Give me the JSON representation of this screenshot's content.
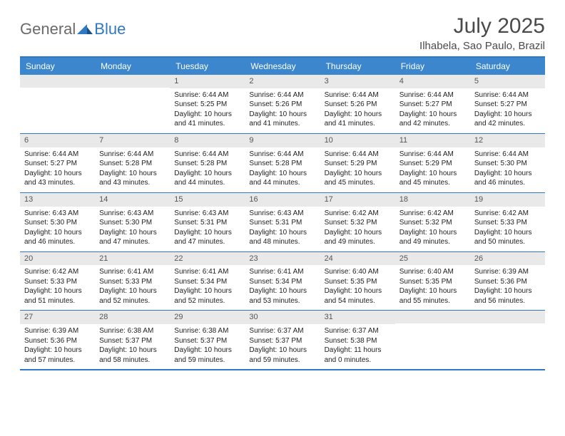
{
  "brand": {
    "word1": "General",
    "word2": "Blue"
  },
  "title": "July 2025",
  "location": "Ilhabela, Sao Paulo, Brazil",
  "colors": {
    "header_bg": "#3b86cc",
    "border": "#2f78c2",
    "daynum_bg": "#e9e9e9",
    "text": "#222222",
    "muted": "#6a6a6a"
  },
  "day_names": [
    "Sunday",
    "Monday",
    "Tuesday",
    "Wednesday",
    "Thursday",
    "Friday",
    "Saturday"
  ],
  "weeks": [
    [
      null,
      null,
      {
        "n": "1",
        "sr": "Sunrise: 6:44 AM",
        "ss": "Sunset: 5:25 PM",
        "dl": "Daylight: 10 hours and 41 minutes."
      },
      {
        "n": "2",
        "sr": "Sunrise: 6:44 AM",
        "ss": "Sunset: 5:26 PM",
        "dl": "Daylight: 10 hours and 41 minutes."
      },
      {
        "n": "3",
        "sr": "Sunrise: 6:44 AM",
        "ss": "Sunset: 5:26 PM",
        "dl": "Daylight: 10 hours and 41 minutes."
      },
      {
        "n": "4",
        "sr": "Sunrise: 6:44 AM",
        "ss": "Sunset: 5:27 PM",
        "dl": "Daylight: 10 hours and 42 minutes."
      },
      {
        "n": "5",
        "sr": "Sunrise: 6:44 AM",
        "ss": "Sunset: 5:27 PM",
        "dl": "Daylight: 10 hours and 42 minutes."
      }
    ],
    [
      {
        "n": "6",
        "sr": "Sunrise: 6:44 AM",
        "ss": "Sunset: 5:27 PM",
        "dl": "Daylight: 10 hours and 43 minutes."
      },
      {
        "n": "7",
        "sr": "Sunrise: 6:44 AM",
        "ss": "Sunset: 5:28 PM",
        "dl": "Daylight: 10 hours and 43 minutes."
      },
      {
        "n": "8",
        "sr": "Sunrise: 6:44 AM",
        "ss": "Sunset: 5:28 PM",
        "dl": "Daylight: 10 hours and 44 minutes."
      },
      {
        "n": "9",
        "sr": "Sunrise: 6:44 AM",
        "ss": "Sunset: 5:28 PM",
        "dl": "Daylight: 10 hours and 44 minutes."
      },
      {
        "n": "10",
        "sr": "Sunrise: 6:44 AM",
        "ss": "Sunset: 5:29 PM",
        "dl": "Daylight: 10 hours and 45 minutes."
      },
      {
        "n": "11",
        "sr": "Sunrise: 6:44 AM",
        "ss": "Sunset: 5:29 PM",
        "dl": "Daylight: 10 hours and 45 minutes."
      },
      {
        "n": "12",
        "sr": "Sunrise: 6:44 AM",
        "ss": "Sunset: 5:30 PM",
        "dl": "Daylight: 10 hours and 46 minutes."
      }
    ],
    [
      {
        "n": "13",
        "sr": "Sunrise: 6:43 AM",
        "ss": "Sunset: 5:30 PM",
        "dl": "Daylight: 10 hours and 46 minutes."
      },
      {
        "n": "14",
        "sr": "Sunrise: 6:43 AM",
        "ss": "Sunset: 5:30 PM",
        "dl": "Daylight: 10 hours and 47 minutes."
      },
      {
        "n": "15",
        "sr": "Sunrise: 6:43 AM",
        "ss": "Sunset: 5:31 PM",
        "dl": "Daylight: 10 hours and 47 minutes."
      },
      {
        "n": "16",
        "sr": "Sunrise: 6:43 AM",
        "ss": "Sunset: 5:31 PM",
        "dl": "Daylight: 10 hours and 48 minutes."
      },
      {
        "n": "17",
        "sr": "Sunrise: 6:42 AM",
        "ss": "Sunset: 5:32 PM",
        "dl": "Daylight: 10 hours and 49 minutes."
      },
      {
        "n": "18",
        "sr": "Sunrise: 6:42 AM",
        "ss": "Sunset: 5:32 PM",
        "dl": "Daylight: 10 hours and 49 minutes."
      },
      {
        "n": "19",
        "sr": "Sunrise: 6:42 AM",
        "ss": "Sunset: 5:33 PM",
        "dl": "Daylight: 10 hours and 50 minutes."
      }
    ],
    [
      {
        "n": "20",
        "sr": "Sunrise: 6:42 AM",
        "ss": "Sunset: 5:33 PM",
        "dl": "Daylight: 10 hours and 51 minutes."
      },
      {
        "n": "21",
        "sr": "Sunrise: 6:41 AM",
        "ss": "Sunset: 5:33 PM",
        "dl": "Daylight: 10 hours and 52 minutes."
      },
      {
        "n": "22",
        "sr": "Sunrise: 6:41 AM",
        "ss": "Sunset: 5:34 PM",
        "dl": "Daylight: 10 hours and 52 minutes."
      },
      {
        "n": "23",
        "sr": "Sunrise: 6:41 AM",
        "ss": "Sunset: 5:34 PM",
        "dl": "Daylight: 10 hours and 53 minutes."
      },
      {
        "n": "24",
        "sr": "Sunrise: 6:40 AM",
        "ss": "Sunset: 5:35 PM",
        "dl": "Daylight: 10 hours and 54 minutes."
      },
      {
        "n": "25",
        "sr": "Sunrise: 6:40 AM",
        "ss": "Sunset: 5:35 PM",
        "dl": "Daylight: 10 hours and 55 minutes."
      },
      {
        "n": "26",
        "sr": "Sunrise: 6:39 AM",
        "ss": "Sunset: 5:36 PM",
        "dl": "Daylight: 10 hours and 56 minutes."
      }
    ],
    [
      {
        "n": "27",
        "sr": "Sunrise: 6:39 AM",
        "ss": "Sunset: 5:36 PM",
        "dl": "Daylight: 10 hours and 57 minutes."
      },
      {
        "n": "28",
        "sr": "Sunrise: 6:38 AM",
        "ss": "Sunset: 5:37 PM",
        "dl": "Daylight: 10 hours and 58 minutes."
      },
      {
        "n": "29",
        "sr": "Sunrise: 6:38 AM",
        "ss": "Sunset: 5:37 PM",
        "dl": "Daylight: 10 hours and 59 minutes."
      },
      {
        "n": "30",
        "sr": "Sunrise: 6:37 AM",
        "ss": "Sunset: 5:37 PM",
        "dl": "Daylight: 10 hours and 59 minutes."
      },
      {
        "n": "31",
        "sr": "Sunrise: 6:37 AM",
        "ss": "Sunset: 5:38 PM",
        "dl": "Daylight: 11 hours and 0 minutes."
      },
      null,
      null
    ]
  ]
}
